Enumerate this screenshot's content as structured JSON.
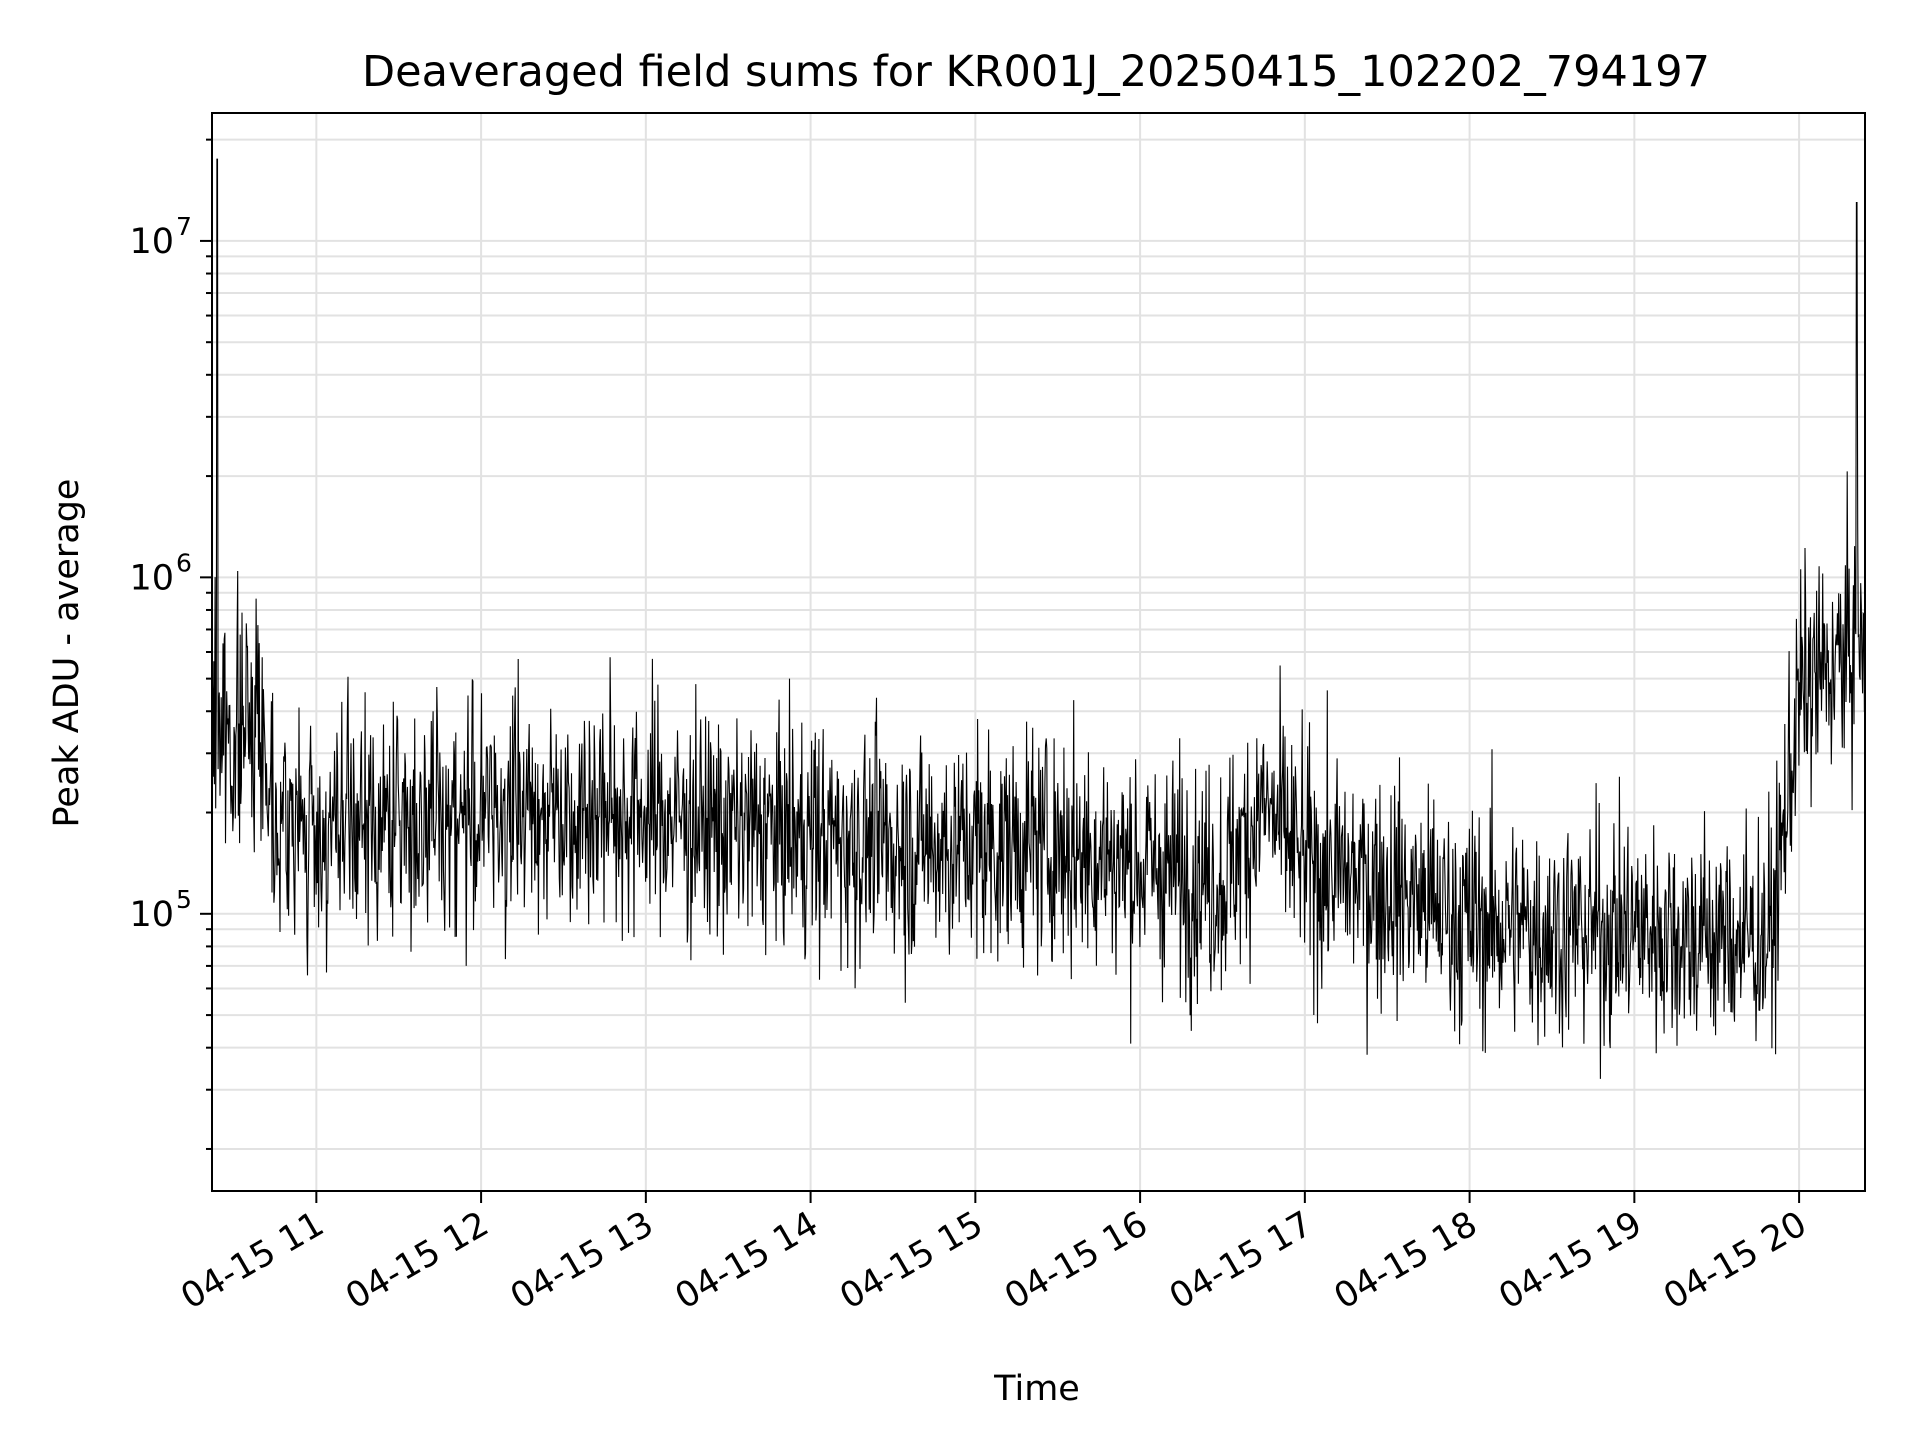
{
  "chart_data": {
    "type": "line",
    "title": "Deaveraged field sums for KR001J_20250415_102202_794197",
    "xlabel": "Time",
    "ylabel": "Peak ADU - average",
    "x_type": "datetime",
    "xlim": [
      "2025-04-15T10:22",
      "2025-04-15T20:24"
    ],
    "ylim": [
      15000,
      24000000
    ],
    "yscale": "log",
    "x_tick_labels": [
      "04-15 11",
      "04-15 12",
      "04-15 13",
      "04-15 14",
      "04-15 15",
      "04-15 16",
      "04-15 17",
      "04-15 18",
      "04-15 19",
      "04-15 20"
    ],
    "x_ticks": [
      "2025-04-15T11:00",
      "2025-04-15T12:00",
      "2025-04-15T13:00",
      "2025-04-15T14:00",
      "2025-04-15T15:00",
      "2025-04-15T16:00",
      "2025-04-15T17:00",
      "2025-04-15T18:00",
      "2025-04-15T19:00",
      "2025-04-15T20:00"
    ],
    "y_ticks": [
      100000,
      1000000,
      10000000
    ],
    "y_tick_labels": [
      {
        "base": "10",
        "exp": "5"
      },
      {
        "base": "10",
        "exp": "6"
      },
      {
        "base": "10",
        "exp": "7"
      }
    ],
    "grid": true,
    "line_color": "#000000",
    "series": [
      {
        "x": [
          "2025-04-15T10:22",
          "2025-04-15T10:30",
          "2025-04-15T10:38",
          "2025-04-15T10:46",
          "2025-04-15T11:00",
          "2025-04-15T11:30",
          "2025-04-15T12:00",
          "2025-04-15T12:30",
          "2025-04-15T13:00",
          "2025-04-15T13:30",
          "2025-04-15T14:00",
          "2025-04-15T14:30",
          "2025-04-15T15:00",
          "2025-04-15T15:30",
          "2025-04-15T16:00",
          "2025-04-15T16:30",
          "2025-04-15T16:45",
          "2025-04-15T17:00",
          "2025-04-15T17:30",
          "2025-04-15T18:00",
          "2025-04-15T18:30",
          "2025-04-15T19:00",
          "2025-04-15T19:30",
          "2025-04-15T19:50",
          "2025-04-15T20:00",
          "2025-04-15T20:10",
          "2025-04-15T20:24"
        ],
        "values": [
          400000,
          320000,
          420000,
          190000,
          170000,
          190000,
          200000,
          210000,
          200000,
          180000,
          170000,
          160000,
          160000,
          160000,
          140000,
          125000,
          210000,
          140000,
          120000,
          95000,
          90000,
          90000,
          85000,
          85000,
          450000,
          520000,
          650000
        ]
      }
    ],
    "annotations": [
      {
        "x": "2025-04-15T10:24",
        "value": 17500000,
        "label": ""
      },
      {
        "x": "2025-04-15T20:21",
        "value": 13000000,
        "label": ""
      }
    ]
  }
}
